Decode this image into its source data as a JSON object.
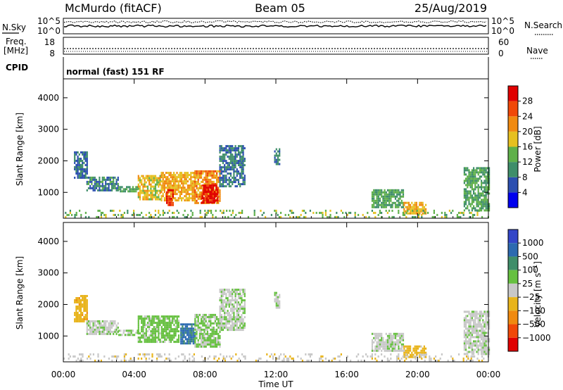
{
  "header": {
    "station": "McMurdo (fitACF)",
    "beam": "Beam 05",
    "date": "25/Aug/2019"
  },
  "status_panel": {
    "nsky_label": "N.Sky",
    "nsky_ticks": [
      "10^5",
      "10^0"
    ],
    "nsearch_label": "N.Search",
    "nsearch_ticks": [
      "10^5",
      "10^0"
    ],
    "freq_label": [
      "Freq.",
      "[MHz]"
    ],
    "freq_ticks": [
      "18",
      "8"
    ],
    "nave_label": "Nave",
    "nave_ticks": [
      "60",
      "0"
    ],
    "cpid_label": "CPID",
    "cpid_value": "normal (fast) 151 RF"
  },
  "colors": {
    "power_scale": [
      "#0000ee",
      "#2c4fb0",
      "#3f8e6a",
      "#5fb04a",
      "#e6c020",
      "#f08a10",
      "#f04808",
      "#e00000"
    ],
    "velocity_scale": [
      "#3346c8",
      "#2c6ab0",
      "#3f8e6a",
      "#66c040",
      "#c8c8c8",
      "#e8b41c",
      "#f08a10",
      "#f04808",
      "#e00000"
    ]
  },
  "chart_data": [
    {
      "type": "heatmap",
      "panel": "power",
      "ylabel": "Slant Range [km]",
      "xlabel": "",
      "x_ticks": [
        "00:00",
        "04:00",
        "08:00",
        "12:00",
        "16:00",
        "20:00",
        "00:00"
      ],
      "xlim_hours": [
        0,
        24
      ],
      "ylim": [
        180,
        4600
      ],
      "y_ticks": [
        1000,
        2000,
        3000,
        4000
      ],
      "colorbar": {
        "label": "Power [dB]",
        "ticks": [
          "4",
          "8",
          "12",
          "16",
          "20",
          "24",
          "28"
        ],
        "range": [
          0,
          32
        ]
      },
      "regions": [
        {
          "t": [
            0.6,
            1.3
          ],
          "r": [
            1450,
            2300
          ],
          "value": 8
        },
        {
          "t": [
            1.3,
            3.1
          ],
          "r": [
            1050,
            1500
          ],
          "value": 9
        },
        {
          "t": [
            3.1,
            4.2
          ],
          "r": [
            1000,
            1200
          ],
          "value": 12
        },
        {
          "t": [
            4.2,
            5.5
          ],
          "r": [
            800,
            1550
          ],
          "value": 18
        },
        {
          "t": [
            5.5,
            7.4
          ],
          "r": [
            750,
            1650
          ],
          "value": 20
        },
        {
          "t": [
            5.8,
            6.2
          ],
          "r": [
            600,
            1100
          ],
          "value": 28
        },
        {
          "t": [
            7.4,
            8.8
          ],
          "r": [
            650,
            1700
          ],
          "value": 22
        },
        {
          "t": [
            7.8,
            8.7
          ],
          "r": [
            650,
            1250
          ],
          "value": 30
        },
        {
          "t": [
            8.8,
            10.2
          ],
          "r": [
            1200,
            2500
          ],
          "value": 8
        },
        {
          "t": [
            11.9,
            12.2
          ],
          "r": [
            1900,
            2400
          ],
          "value": 8
        },
        {
          "t": [
            17.4,
            19.2
          ],
          "r": [
            500,
            1100
          ],
          "value": 12
        },
        {
          "t": [
            19.2,
            20.5
          ],
          "r": [
            300,
            700
          ],
          "value": 20
        },
        {
          "t": [
            22.6,
            24.0
          ],
          "r": [
            400,
            1800
          ],
          "value": 12
        },
        {
          "t": [
            0.0,
            24.0
          ],
          "r": [
            200,
            450
          ],
          "value": 14
        }
      ]
    },
    {
      "type": "heatmap",
      "panel": "velocity",
      "ylabel": "Slant Range [km]",
      "xlabel": "Time UT",
      "x_ticks": [
        "00:00",
        "04:00",
        "08:00",
        "12:00",
        "16:00",
        "20:00",
        "00:00"
      ],
      "xlim_hours": [
        0,
        24
      ],
      "ylim": [
        180,
        4600
      ],
      "y_ticks": [
        1000,
        2000,
        3000,
        4000
      ],
      "colorbar": {
        "label": "Velocity [m s^-1]",
        "ticks": [
          "1000",
          "500",
          "100",
          "25",
          "−25",
          "−100",
          "−500",
          "−1000"
        ],
        "range": [
          -1250,
          1250
        ]
      },
      "regions": [
        {
          "t": [
            0.6,
            1.3
          ],
          "r": [
            1450,
            2300
          ],
          "value": -300
        },
        {
          "t": [
            1.3,
            3.1
          ],
          "r": [
            1050,
            1500
          ],
          "value": 60
        },
        {
          "t": [
            3.1,
            4.2
          ],
          "r": [
            1000,
            1200
          ],
          "value": 200
        },
        {
          "t": [
            4.2,
            6.5
          ],
          "r": [
            800,
            1650
          ],
          "value": 250
        },
        {
          "t": [
            6.6,
            7.4
          ],
          "r": [
            750,
            1400
          ],
          "value": 800
        },
        {
          "t": [
            7.4,
            8.8
          ],
          "r": [
            650,
            1700
          ],
          "value": 200
        },
        {
          "t": [
            8.8,
            10.2
          ],
          "r": [
            1200,
            2500
          ],
          "value": 80
        },
        {
          "t": [
            11.9,
            12.2
          ],
          "r": [
            1900,
            2400
          ],
          "value": 60
        },
        {
          "t": [
            17.4,
            19.2
          ],
          "r": [
            500,
            1100
          ],
          "value": 60
        },
        {
          "t": [
            19.2,
            20.5
          ],
          "r": [
            300,
            700
          ],
          "value": -250
        },
        {
          "t": [
            22.6,
            24.0
          ],
          "r": [
            400,
            1800
          ],
          "value": 40
        },
        {
          "t": [
            0.0,
            24.0
          ],
          "r": [
            200,
            450
          ],
          "value": -60
        }
      ]
    }
  ]
}
